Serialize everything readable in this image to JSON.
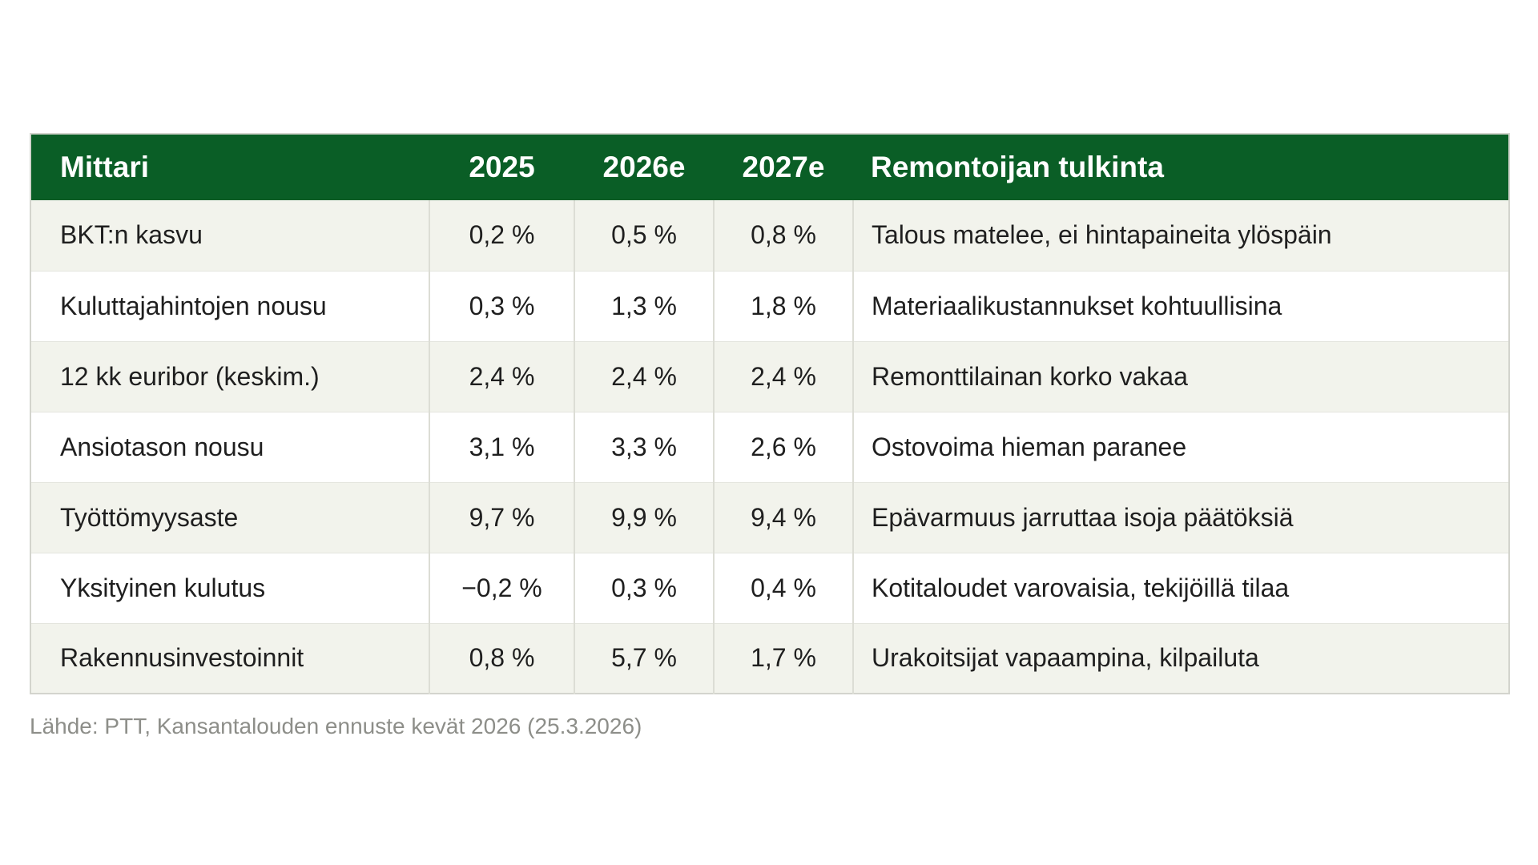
{
  "chart_data": {
    "type": "table",
    "title": "",
    "columns": [
      "Mittari",
      "2025",
      "2026e",
      "2027e",
      "Remontoijan tulkinta"
    ],
    "rows": [
      {
        "mittari": "BKT:n kasvu",
        "v2025": "0,2 %",
        "v2026e": "0,5 %",
        "v2027e": "0,8 %",
        "tulkinta": "Talous matelee, ei hintapaineita ylöspäin"
      },
      {
        "mittari": "Kuluttajahintojen nousu",
        "v2025": "0,3 %",
        "v2026e": "1,3 %",
        "v2027e": "1,8 %",
        "tulkinta": "Materiaalikustannukset kohtuullisina"
      },
      {
        "mittari": "12 kk euribor (keskim.)",
        "v2025": "2,4 %",
        "v2026e": "2,4 %",
        "v2027e": "2,4 %",
        "tulkinta": "Remonttilainan korko vakaa"
      },
      {
        "mittari": "Ansiotason nousu",
        "v2025": "3,1 %",
        "v2026e": "3,3 %",
        "v2027e": "2,6 %",
        "tulkinta": "Ostovoima hieman paranee"
      },
      {
        "mittari": "Työttömyysaste",
        "v2025": "9,7 %",
        "v2026e": "9,9 %",
        "v2027e": "9,4 %",
        "tulkinta": "Epävarmuus jarruttaa isoja päätöksiä"
      },
      {
        "mittari": "Yksityinen kulutus",
        "v2025": "−0,2 %",
        "v2026e": "0,3 %",
        "v2027e": "0,4 %",
        "tulkinta": "Kotitaloudet varovaisia, tekijöillä tilaa"
      },
      {
        "mittari": "Rakennusinvestoinnit",
        "v2025": "0,8 %",
        "v2026e": "5,7 %",
        "v2027e": "1,7 %",
        "tulkinta": "Urakoitsijat vapaampina, kilpailuta"
      }
    ]
  },
  "footer": {
    "source": "Lähde: PTT, Kansantalouden ennuste kevät 2026 (25.3.2026)"
  },
  "colors": {
    "header_bg": "#0a5e26",
    "header_text": "#ffffff",
    "row_alt_bg": "#f2f3ec",
    "row_bg": "#ffffff",
    "grid_line": "#dcddd5",
    "row_line": "#e4e5de",
    "outer_border": "#d3d4cd",
    "body_text": "#1f1f1f",
    "source_text": "#8d8e89"
  }
}
